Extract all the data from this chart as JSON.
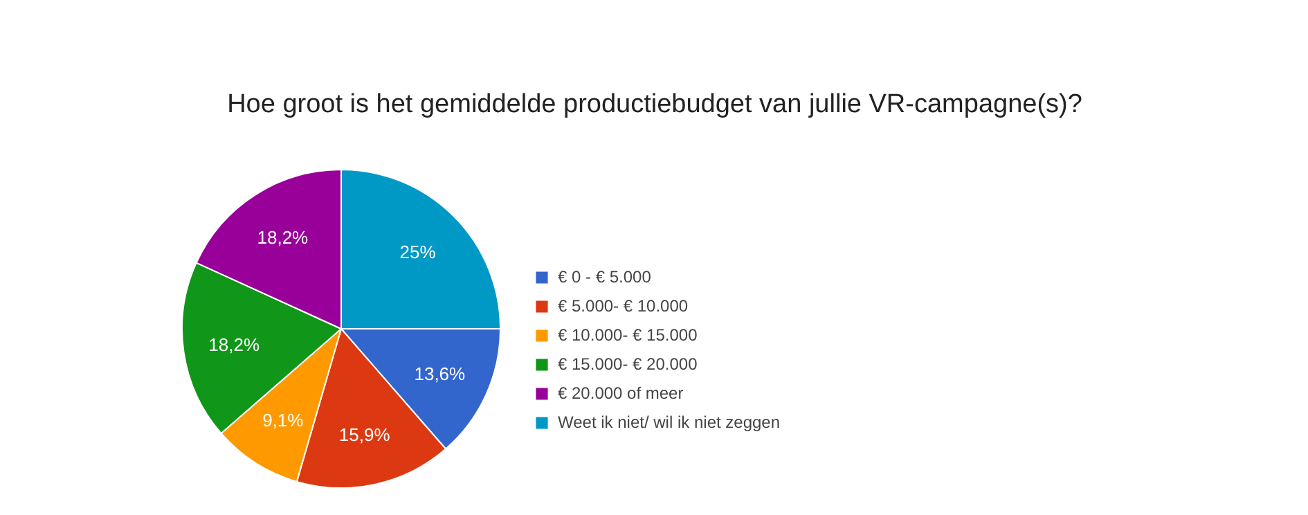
{
  "chart_data": {
    "type": "pie",
    "title": "Hoe groot is het gemiddelde productiebudget van jullie VR-campagne(s)?",
    "categories": [
      "€ 0 - € 5.000",
      "€ 5.000- € 10.000",
      "€ 10.000- € 15.000",
      "€ 15.000- € 20.000",
      "€ 20.000 of meer",
      "Weet ik niet/ wil ik niet zeggen"
    ],
    "values": [
      13.6,
      15.9,
      9.1,
      18.2,
      18.2,
      25
    ],
    "value_labels": [
      "13,6%",
      "15,9%",
      "9,1%",
      "18,2%",
      "18,2%",
      "25%"
    ],
    "colors": [
      "#3366cc",
      "#dc3912",
      "#ff9900",
      "#109618",
      "#990099",
      "#0099c6"
    ],
    "legend": "right"
  }
}
